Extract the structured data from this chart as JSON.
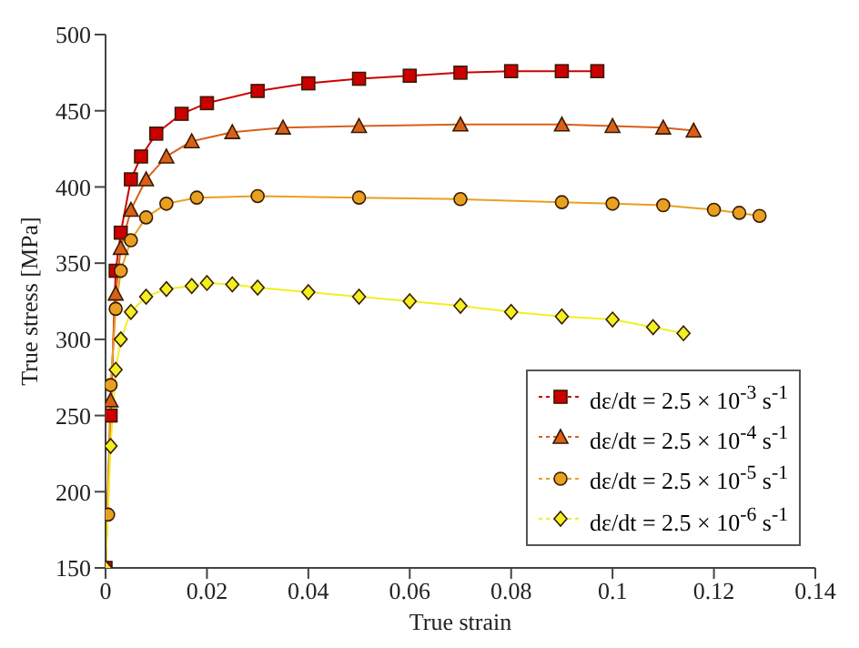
{
  "chart_data": {
    "type": "line",
    "xlabel": "True strain",
    "ylabel": "True stress [MPa]",
    "xlim": [
      0,
      0.14
    ],
    "xticks": [
      0,
      0.02,
      0.04,
      0.06,
      0.08,
      0.1,
      0.12,
      0.14
    ],
    "ylim": [
      150,
      500
    ],
    "yticks": [
      150,
      200,
      250,
      300,
      350,
      400,
      450,
      500
    ],
    "grid": false,
    "legend": "bottom right",
    "series": [
      {
        "name": "dε/dt = 2.5 × 10$^{-3}$ s$^{-1}$",
        "color": "#cc0000",
        "marker": "square",
        "x": [
          0,
          0.001,
          0.002,
          0.003,
          0.005,
          0.007,
          0.01,
          0.015,
          0.02,
          0.03,
          0.04,
          0.05,
          0.06,
          0.07,
          0.08,
          0.09,
          0.097
        ],
        "values": [
          150,
          250,
          345,
          370,
          405,
          420,
          435,
          448,
          455,
          463,
          468,
          471,
          473,
          475,
          476,
          476,
          476
        ]
      },
      {
        "name": "dε/dt = 2.5 × 10$^{-4}$ s$^{-1}$",
        "color": "#d9601a",
        "marker": "triangle",
        "x": [
          0,
          0.001,
          0.002,
          0.003,
          0.005,
          0.008,
          0.012,
          0.017,
          0.025,
          0.035,
          0.05,
          0.07,
          0.09,
          0.1,
          0.11,
          0.116
        ],
        "values": [
          150,
          260,
          330,
          360,
          385,
          405,
          420,
          430,
          436,
          439,
          440,
          441,
          441,
          440,
          439,
          437
        ]
      },
      {
        "name": "dε/dt = 2.5 × 10$^{-5}$ s$^{-1}$",
        "color": "#e8a020",
        "marker": "circle",
        "x": [
          0.0005,
          0.001,
          0.002,
          0.003,
          0.005,
          0.008,
          0.012,
          0.018,
          0.03,
          0.05,
          0.07,
          0.09,
          0.1,
          0.11,
          0.12,
          0.125,
          0.129
        ],
        "values": [
          185,
          270,
          320,
          345,
          365,
          380,
          389,
          393,
          394,
          393,
          392,
          390,
          389,
          388,
          385,
          383,
          381
        ]
      },
      {
        "name": "dε/dt = 2.5 × 10$^{-6}$ s$^{-1}$",
        "color": "#f0f020",
        "marker": "diamond",
        "x": [
          0,
          0.001,
          0.002,
          0.003,
          0.005,
          0.008,
          0.012,
          0.017,
          0.02,
          0.025,
          0.03,
          0.04,
          0.05,
          0.06,
          0.07,
          0.08,
          0.09,
          0.1,
          0.108,
          0.114
        ],
        "values": [
          150,
          230,
          280,
          300,
          318,
          328,
          333,
          335,
          337,
          336,
          334,
          331,
          328,
          325,
          322,
          318,
          315,
          313,
          308,
          304
        ]
      }
    ]
  }
}
